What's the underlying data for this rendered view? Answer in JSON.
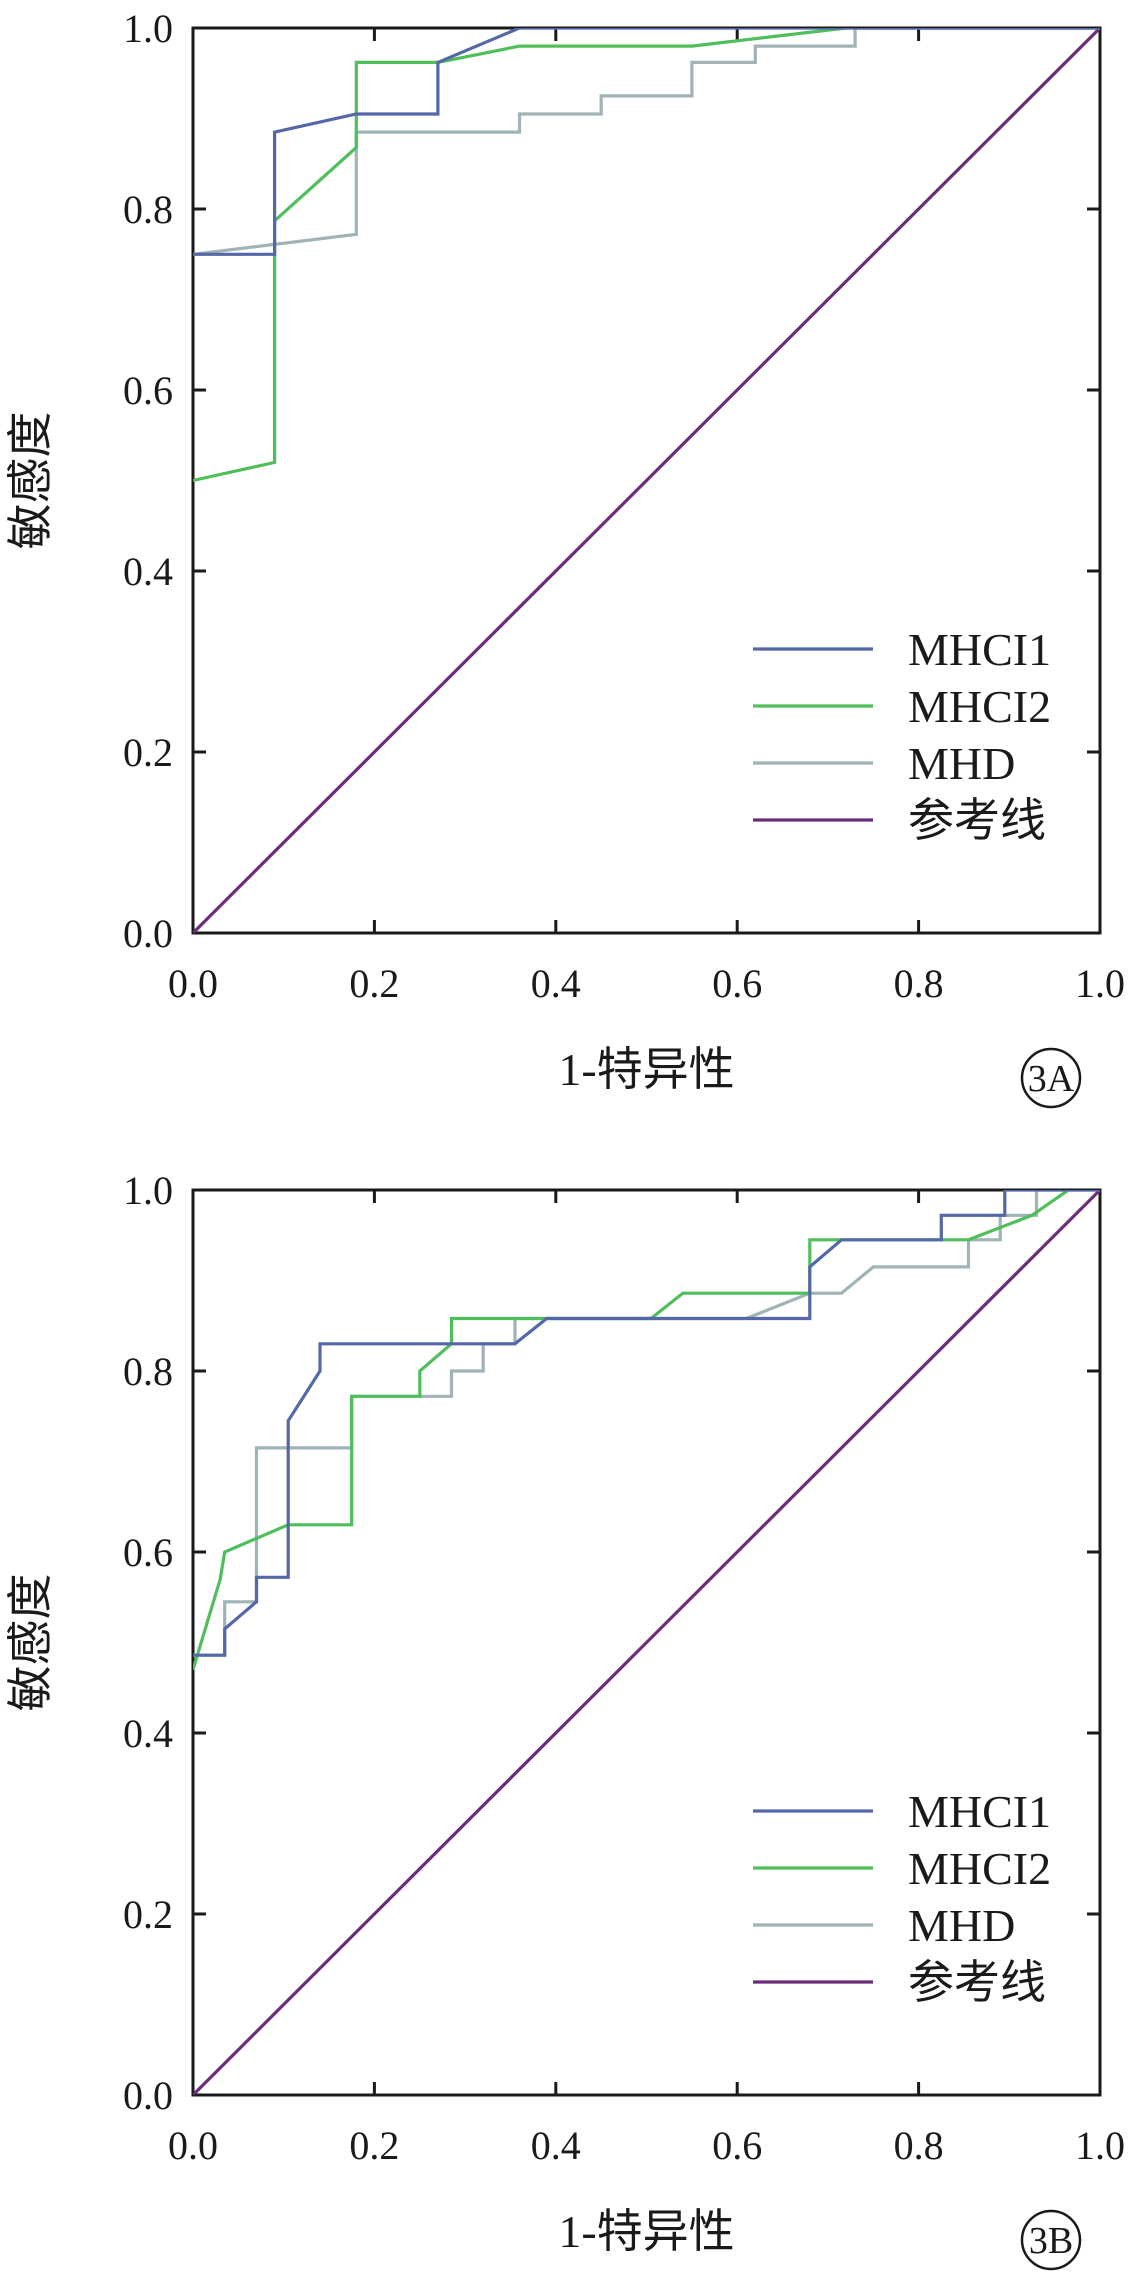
{
  "chart_data": [
    {
      "type": "line",
      "panel_label": "3A",
      "xlabel": "1-特异性",
      "ylabel": "敏感度",
      "xlim": [
        0,
        1
      ],
      "ylim": [
        0,
        1
      ],
      "xticks": [
        "0.0",
        "0.2",
        "0.4",
        "0.6",
        "0.8",
        "1.0"
      ],
      "yticks": [
        "0.0",
        "0.2",
        "0.4",
        "0.6",
        "0.8",
        "1.0"
      ],
      "grid": false,
      "legend_position": "bottom-right",
      "series": [
        {
          "name": "MHCI1",
          "color": "#5468a8",
          "x": [
            0,
            0.09,
            0.09,
            0.18,
            0.27,
            0.27,
            0.36,
            1.0
          ],
          "y": [
            0.75,
            0.75,
            0.885,
            0.905,
            0.905,
            0.962,
            1.0,
            1.0
          ]
        },
        {
          "name": "MHCI2",
          "color": "#4fbf5c",
          "x": [
            0,
            0.09,
            0.09,
            0.18,
            0.18,
            0.27,
            0.36,
            0.55,
            0.72,
            1.0
          ],
          "y": [
            0.5,
            0.52,
            0.787,
            0.868,
            0.962,
            0.962,
            0.98,
            0.98,
            1.0,
            1.0
          ]
        },
        {
          "name": "MHD",
          "color": "#9fb3b8",
          "x": [
            0,
            0.18,
            0.18,
            0.36,
            0.36,
            0.45,
            0.45,
            0.55,
            0.55,
            0.62,
            0.62,
            0.73,
            0.73,
            1.0
          ],
          "y": [
            0.75,
            0.772,
            0.885,
            0.885,
            0.905,
            0.905,
            0.925,
            0.925,
            0.962,
            0.962,
            0.98,
            0.98,
            1.0,
            1.0
          ]
        },
        {
          "name": "参考线",
          "color": "#6b2d7b",
          "x": [
            0,
            1
          ],
          "y": [
            0,
            1
          ]
        }
      ]
    },
    {
      "type": "line",
      "panel_label": "3B",
      "xlabel": "1-特异性",
      "ylabel": "敏感度",
      "xlim": [
        0,
        1
      ],
      "ylim": [
        0,
        1
      ],
      "xticks": [
        "0.0",
        "0.2",
        "0.4",
        "0.6",
        "0.8",
        "1.0"
      ],
      "yticks": [
        "0.0",
        "0.2",
        "0.4",
        "0.6",
        "0.8",
        "1.0"
      ],
      "grid": false,
      "legend_position": "bottom-right",
      "series": [
        {
          "name": "MHCI1",
          "color": "#5468a8",
          "x": [
            0,
            0.035,
            0.035,
            0.07,
            0.07,
            0.105,
            0.105,
            0.14,
            0.14,
            0.355,
            0.39,
            0.68,
            0.68,
            0.715,
            0.825,
            0.825,
            0.895,
            0.895,
            1.0
          ],
          "y": [
            0.486,
            0.486,
            0.515,
            0.545,
            0.572,
            0.572,
            0.745,
            0.8,
            0.83,
            0.83,
            0.858,
            0.858,
            0.915,
            0.945,
            0.945,
            0.972,
            0.972,
            1.0,
            1.0
          ]
        },
        {
          "name": "MHCI2",
          "color": "#4fbf5c",
          "x": [
            0,
            0.03,
            0.035,
            0.105,
            0.175,
            0.175,
            0.25,
            0.25,
            0.285,
            0.285,
            0.355,
            0.355,
            0.505,
            0.54,
            0.68,
            0.68,
            0.715,
            0.855,
            0.925,
            0.965
          ],
          "y": [
            0.47,
            0.57,
            0.6,
            0.63,
            0.63,
            0.772,
            0.772,
            0.8,
            0.83,
            0.858,
            0.858,
            0.858,
            0.858,
            0.886,
            0.886,
            0.945,
            0.945,
            0.945,
            0.972,
            1.0
          ]
        },
        {
          "name": "MHD",
          "color": "#9fb3b8",
          "x": [
            0,
            0.035,
            0.035,
            0.07,
            0.07,
            0.175,
            0.175,
            0.285,
            0.285,
            0.32,
            0.32,
            0.355,
            0.355,
            0.61,
            0.68,
            0.715,
            0.75,
            0.855,
            0.855,
            0.89,
            0.89,
            0.93,
            0.93,
            1.0
          ],
          "y": [
            0.486,
            0.486,
            0.545,
            0.545,
            0.715,
            0.715,
            0.772,
            0.772,
            0.8,
            0.8,
            0.83,
            0.83,
            0.858,
            0.858,
            0.886,
            0.886,
            0.915,
            0.915,
            0.945,
            0.945,
            0.972,
            0.972,
            1.0,
            1.0
          ]
        },
        {
          "name": "参考线",
          "color": "#6b2d7b",
          "x": [
            0,
            1
          ],
          "y": [
            0,
            1
          ]
        }
      ]
    }
  ]
}
